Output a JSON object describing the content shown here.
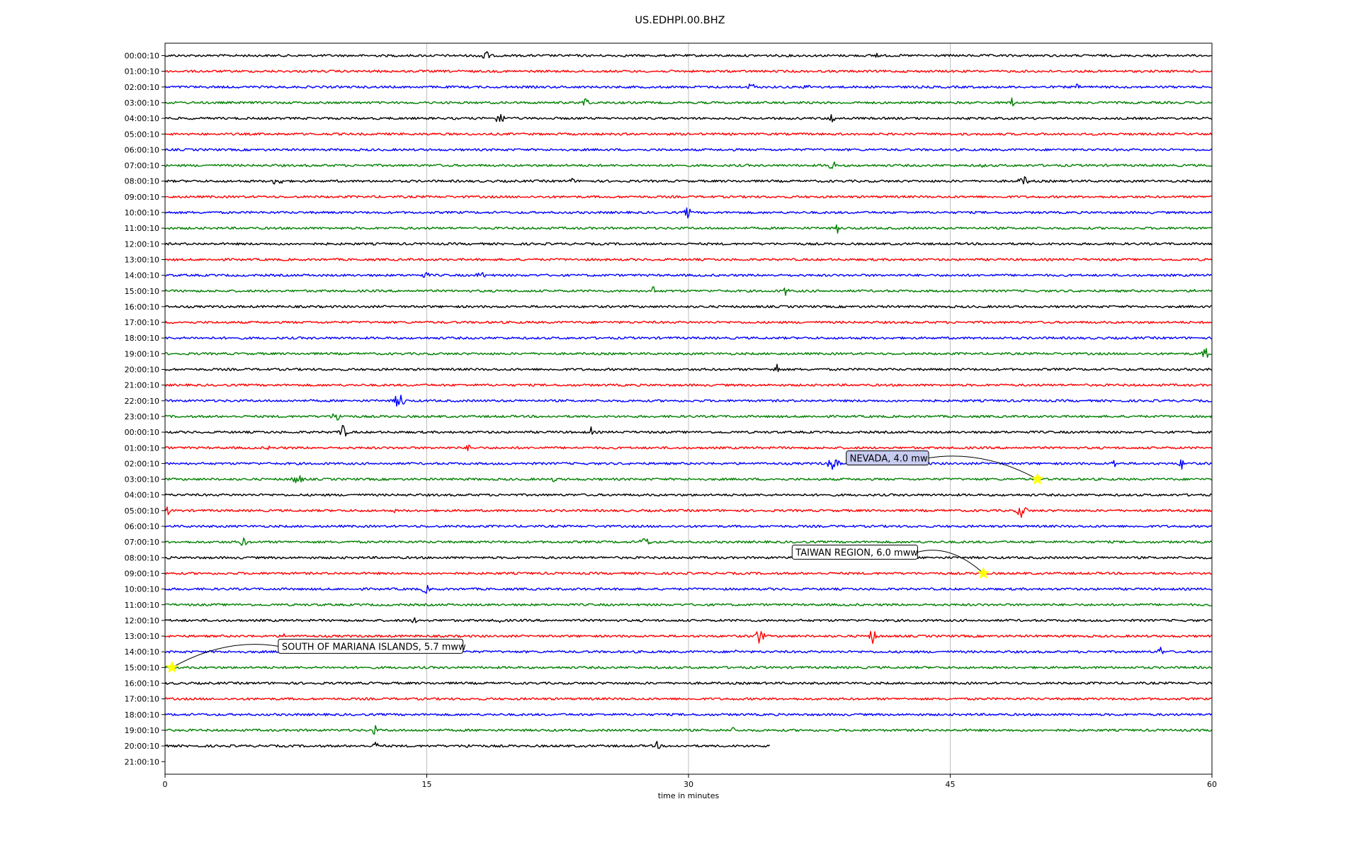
{
  "chart_data": {
    "type": "line",
    "title": "US.EDHPI.00.BHZ",
    "xlabel": "time in minutes",
    "ylabel": "",
    "xlim": [
      0,
      60
    ],
    "x_ticks": [
      0,
      15,
      30,
      45,
      60
    ],
    "grid_x": true,
    "row_labels": [
      "00:00:10",
      "01:00:10",
      "02:00:10",
      "03:00:10",
      "04:00:10",
      "05:00:10",
      "06:00:10",
      "07:00:10",
      "08:00:10",
      "09:00:10",
      "10:00:10",
      "11:00:10",
      "12:00:10",
      "13:00:10",
      "14:00:10",
      "15:00:10",
      "16:00:10",
      "17:00:10",
      "18:00:10",
      "19:00:10",
      "20:00:10",
      "21:00:10",
      "22:00:10",
      "23:00:10",
      "00:00:10",
      "01:00:10",
      "02:00:10",
      "03:00:10",
      "04:00:10",
      "05:00:10",
      "06:00:10",
      "07:00:10",
      "08:00:10",
      "09:00:10",
      "10:00:10",
      "11:00:10",
      "12:00:10",
      "13:00:10",
      "14:00:10",
      "15:00:10",
      "16:00:10",
      "17:00:10",
      "18:00:10",
      "19:00:10",
      "20:00:10",
      "21:00:10"
    ],
    "trace_colors": [
      "#000000",
      "#ff0000",
      "#0000ff",
      "#008000"
    ],
    "trace_count": 45,
    "last_trace_end_minute": 34.7,
    "annotations": [
      {
        "text": "NEVADA, 4.0 mw",
        "row": 27,
        "minute": 50.0,
        "fill": "#c8cbf0"
      },
      {
        "text": "TAIWAN REGION, 6.0 mww",
        "row": 33,
        "minute": 46.9,
        "fill": "#ffffff"
      },
      {
        "text": "SOUTH OF MARIANA ISLANDS, 5.7 mww",
        "row": 39,
        "minute": 0.4,
        "fill": "#ffffff"
      }
    ],
    "marker_color": "#ffff00"
  }
}
